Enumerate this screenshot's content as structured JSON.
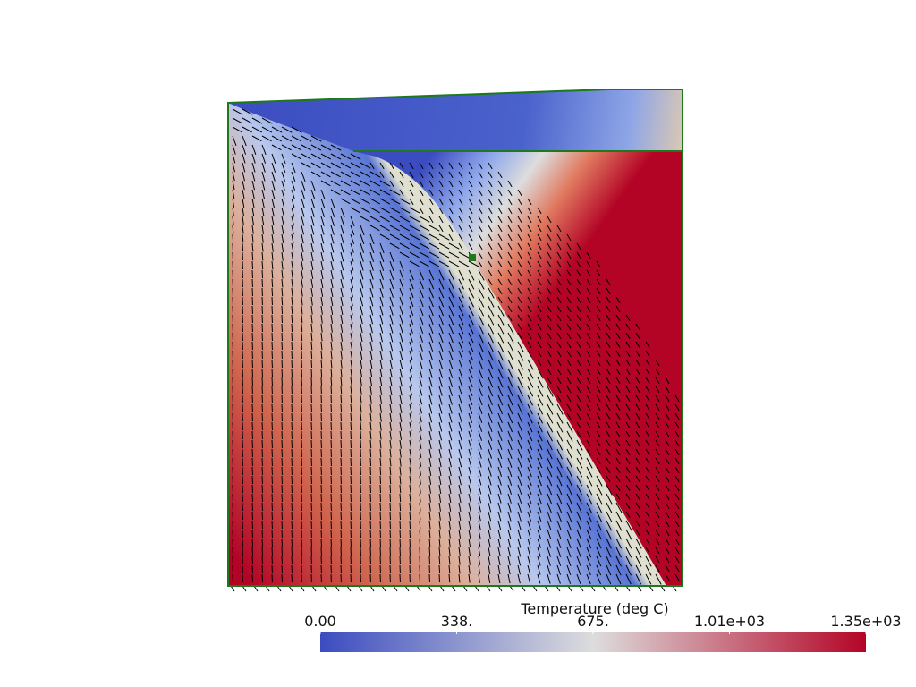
{
  "chart_data": {
    "type": "field",
    "colorbar_title": "Temperature (deg C)",
    "clim": [
      0,
      1350
    ],
    "cticks": [
      {
        "value": 0,
        "label": "0.00"
      },
      {
        "value": 337.5,
        "label": "338."
      },
      {
        "value": 675,
        "label": "675."
      },
      {
        "value": 1012.5,
        "label": "1.01e+03"
      },
      {
        "value": 1350,
        "label": "1.35e+03"
      }
    ],
    "colormap": [
      "#3b4cc0",
      "#dddddd",
      "#b40426"
    ]
  }
}
